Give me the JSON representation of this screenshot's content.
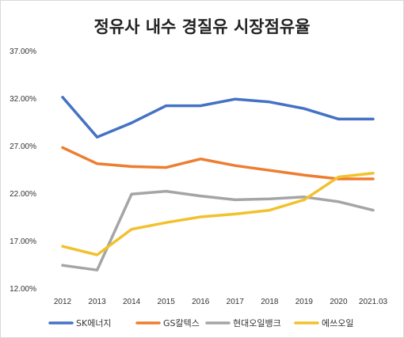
{
  "chart_data": {
    "type": "line",
    "title": "정유사 내수 경질유 시장점유율",
    "categories": [
      "2012",
      "2013",
      "2014",
      "2015",
      "2016",
      "2017",
      "2018",
      "2019",
      "2020",
      "2021.03"
    ],
    "ylim": [
      12,
      37
    ],
    "yticks": [
      37,
      32,
      27,
      22,
      17,
      12
    ],
    "ytick_labels": [
      "37.00%",
      "32.00%",
      "27.00%",
      "22.00%",
      "17.00%",
      "12.00%"
    ],
    "grid": false,
    "legend_position": "bottom",
    "series": [
      {
        "name": "SK에너지",
        "color": "#4472C4",
        "values": [
          32.1,
          27.9,
          29.4,
          31.2,
          31.2,
          31.9,
          31.6,
          30.9,
          29.8,
          29.8
        ]
      },
      {
        "name": "GS칼텍스",
        "color": "#ED7D31",
        "values": [
          26.8,
          25.1,
          24.8,
          24.7,
          25.6,
          24.9,
          24.4,
          23.9,
          23.5,
          23.5
        ]
      },
      {
        "name": "현대오일뱅크",
        "color": "#A5A5A5",
        "values": [
          14.4,
          13.9,
          21.9,
          22.2,
          21.7,
          21.3,
          21.4,
          21.6,
          21.1,
          20.2
        ]
      },
      {
        "name": "에쓰오일",
        "color": "#F2C12E",
        "values": [
          16.4,
          15.5,
          18.2,
          18.9,
          19.5,
          19.8,
          20.2,
          21.3,
          23.7,
          24.1
        ]
      }
    ]
  }
}
